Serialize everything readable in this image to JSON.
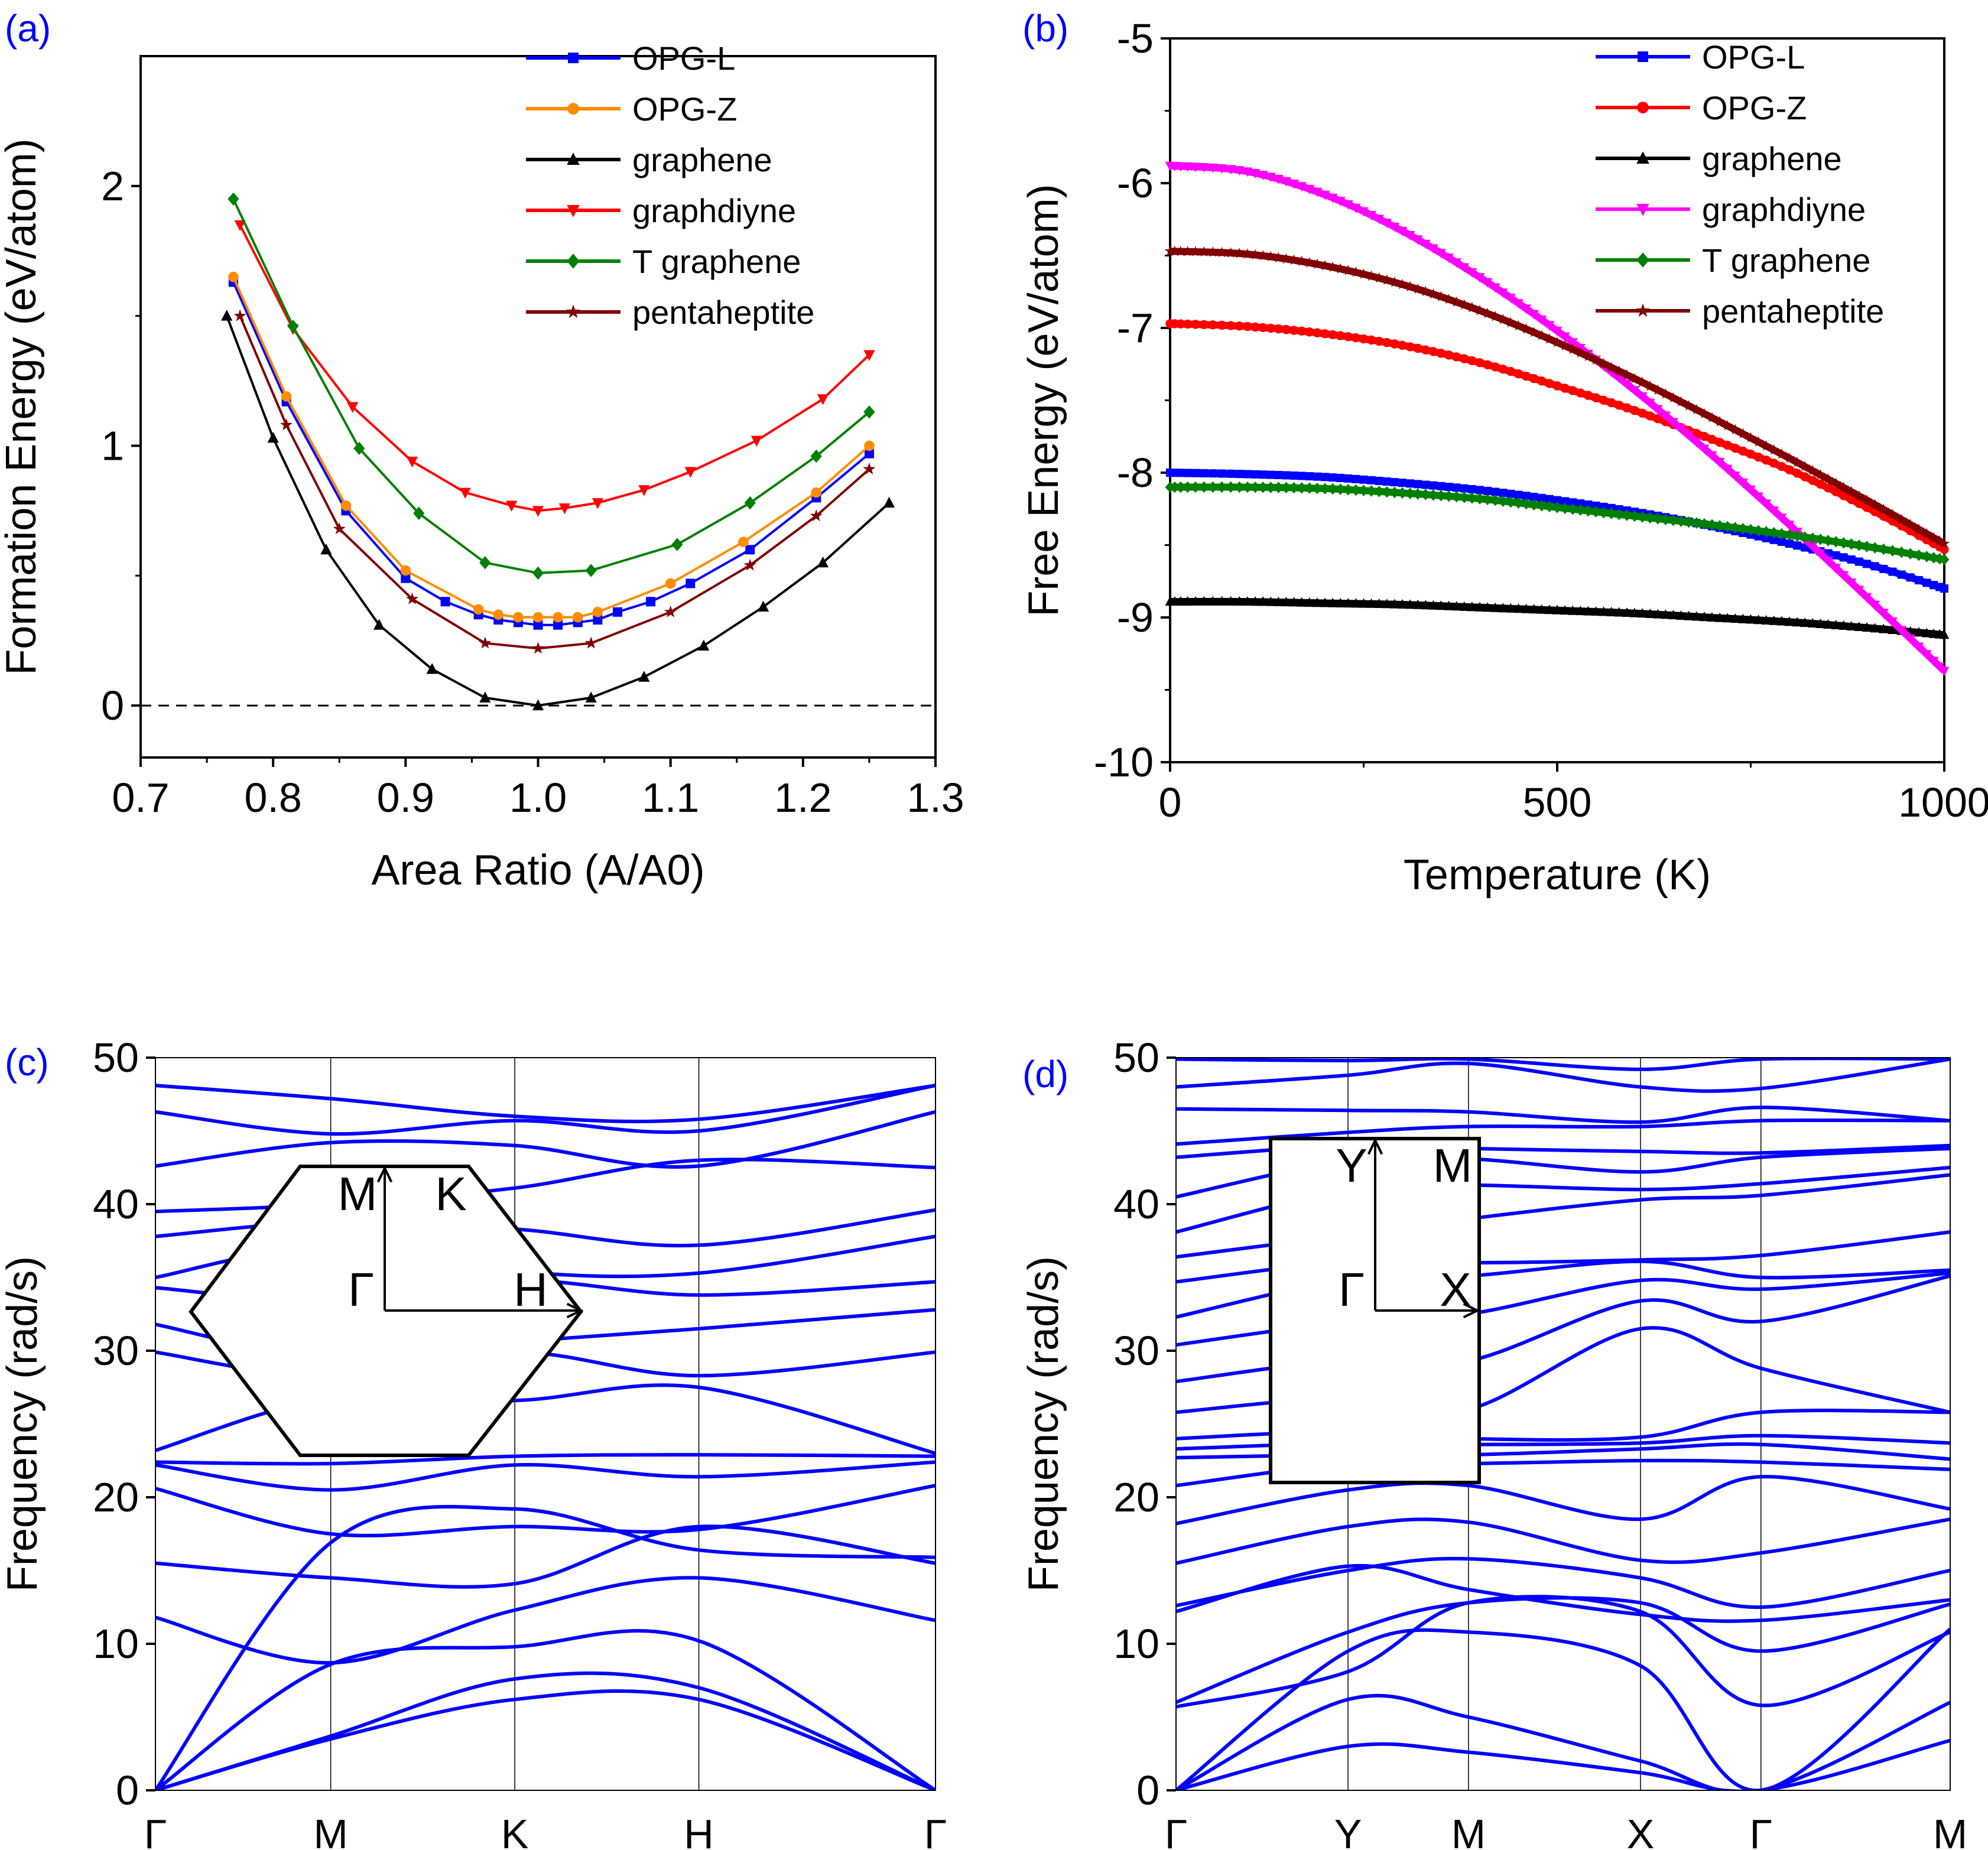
{
  "chart_data": [
    {
      "id": "a",
      "panel_label": "(a)",
      "type": "line",
      "xlabel": "Area Ratio (A/A0)",
      "ylabel": "Formation Energy (eV/atom)",
      "xlim": [
        0.7,
        1.3
      ],
      "ylim": [
        -0.2,
        2.5
      ],
      "xticks": [
        "0.7",
        "0.8",
        "0.9",
        "1.0",
        "1.1",
        "1.2",
        "1.3"
      ],
      "yticks": [
        "0",
        "1",
        "2"
      ],
      "reference_line_y": 0,
      "legend_position": "top-right",
      "series": [
        {
          "name": "OPG-L",
          "color": "#0000ff",
          "marker": "square",
          "x": [
            0.77,
            0.81,
            0.855,
            0.9,
            0.93,
            0.955,
            0.97,
            0.985,
            1.0,
            1.015,
            1.03,
            1.045,
            1.06,
            1.085,
            1.115,
            1.16,
            1.21,
            1.25
          ],
          "y": [
            1.63,
            1.17,
            0.75,
            0.49,
            0.4,
            0.35,
            0.33,
            0.32,
            0.31,
            0.31,
            0.32,
            0.33,
            0.36,
            0.4,
            0.47,
            0.6,
            0.8,
            0.97
          ]
        },
        {
          "name": "OPG-Z",
          "color": "#ff8c00",
          "marker": "circle",
          "x": [
            0.77,
            0.81,
            0.855,
            0.9,
            0.955,
            0.97,
            0.985,
            1.0,
            1.015,
            1.03,
            1.045,
            1.1,
            1.155,
            1.21,
            1.25
          ],
          "y": [
            1.65,
            1.19,
            0.77,
            0.52,
            0.37,
            0.35,
            0.34,
            0.34,
            0.34,
            0.34,
            0.36,
            0.47,
            0.63,
            0.82,
            1.0
          ]
        },
        {
          "name": "graphene",
          "color": "#000000",
          "marker": "triangle-up",
          "x": [
            0.765,
            0.8,
            0.84,
            0.88,
            0.92,
            0.96,
            1.0,
            1.04,
            1.08,
            1.125,
            1.17,
            1.215,
            1.265
          ],
          "y": [
            1.5,
            1.03,
            0.6,
            0.31,
            0.14,
            0.03,
            0.0,
            0.03,
            0.11,
            0.23,
            0.38,
            0.55,
            0.78
          ]
        },
        {
          "name": "graphdiyne",
          "color": "#ff0000",
          "marker": "triangle-down",
          "x": [
            0.775,
            0.815,
            0.86,
            0.905,
            0.945,
            0.98,
            1.0,
            1.02,
            1.045,
            1.08,
            1.115,
            1.165,
            1.215,
            1.25
          ],
          "y": [
            1.85,
            1.45,
            1.15,
            0.94,
            0.82,
            0.77,
            0.75,
            0.76,
            0.78,
            0.83,
            0.9,
            1.02,
            1.18,
            1.35
          ]
        },
        {
          "name": "T graphene",
          "color": "#008000",
          "marker": "diamond",
          "x": [
            0.77,
            0.815,
            0.865,
            0.91,
            0.96,
            1.0,
            1.04,
            1.105,
            1.16,
            1.21,
            1.25
          ],
          "y": [
            1.95,
            1.46,
            0.99,
            0.74,
            0.55,
            0.51,
            0.52,
            0.62,
            0.78,
            0.96,
            1.13
          ]
        },
        {
          "name": "pentaheptite",
          "color": "#800000",
          "marker": "star",
          "x": [
            0.775,
            0.81,
            0.85,
            0.905,
            0.96,
            1.0,
            1.04,
            1.1,
            1.16,
            1.21,
            1.25
          ],
          "y": [
            1.5,
            1.08,
            0.68,
            0.41,
            0.24,
            0.22,
            0.24,
            0.36,
            0.54,
            0.73,
            0.91
          ]
        }
      ]
    },
    {
      "id": "b",
      "panel_label": "(b)",
      "type": "line",
      "xlabel": "Temperature (K)",
      "ylabel": "Free Energy (eV/atom)",
      "xlim": [
        0,
        1000
      ],
      "ylim": [
        -10,
        -5
      ],
      "xticks": [
        "0",
        "500",
        "1000"
      ],
      "yticks": [
        "-5",
        "-6",
        "-7",
        "-8",
        "-9",
        "-10"
      ],
      "legend_position": "top-right",
      "series": [
        {
          "name": "OPG-L",
          "color": "#0000ff",
          "marker": "square",
          "x": [
            0,
            100,
            200,
            300,
            400,
            500,
            600,
            700,
            800,
            900,
            1000
          ],
          "y": [
            -8.0,
            -8.01,
            -8.03,
            -8.07,
            -8.12,
            -8.19,
            -8.27,
            -8.37,
            -8.49,
            -8.63,
            -8.8
          ]
        },
        {
          "name": "OPG-Z",
          "color": "#ff0000",
          "marker": "circle",
          "x": [
            0,
            100,
            200,
            300,
            400,
            500,
            600,
            700,
            800,
            900,
            1000
          ],
          "y": [
            -6.97,
            -6.99,
            -7.04,
            -7.12,
            -7.24,
            -7.4,
            -7.57,
            -7.77,
            -7.98,
            -8.24,
            -8.53
          ]
        },
        {
          "name": "graphene",
          "color": "#000000",
          "marker": "triangle-up",
          "x": [
            0,
            100,
            200,
            300,
            400,
            500,
            600,
            700,
            800,
            900,
            1000
          ],
          "y": [
            -8.89,
            -8.89,
            -8.9,
            -8.91,
            -8.93,
            -8.95,
            -8.97,
            -9.0,
            -9.03,
            -9.07,
            -9.12
          ]
        },
        {
          "name": "graphdiyne",
          "color": "#ff00ff",
          "marker": "triangle-down",
          "x": [
            0,
            100,
            200,
            300,
            400,
            500,
            600,
            700,
            800,
            900,
            1000
          ],
          "y": [
            -5.88,
            -5.92,
            -6.08,
            -6.33,
            -6.65,
            -7.02,
            -7.43,
            -7.88,
            -8.36,
            -8.86,
            -9.37
          ]
        },
        {
          "name": "T graphene",
          "color": "#008000",
          "marker": "diamond",
          "x": [
            0,
            100,
            200,
            300,
            400,
            500,
            600,
            700,
            800,
            900,
            1000
          ],
          "y": [
            -8.1,
            -8.1,
            -8.11,
            -8.14,
            -8.18,
            -8.24,
            -8.3,
            -8.36,
            -8.43,
            -8.51,
            -8.6
          ]
        },
        {
          "name": "pentaheptite",
          "color": "#800000",
          "marker": "star",
          "x": [
            0,
            100,
            200,
            300,
            400,
            500,
            600,
            700,
            800,
            900,
            1000
          ],
          "y": [
            -6.47,
            -6.49,
            -6.57,
            -6.7,
            -6.88,
            -7.1,
            -7.35,
            -7.62,
            -7.9,
            -8.19,
            -8.49
          ]
        }
      ]
    },
    {
      "id": "c",
      "panel_label": "(c)",
      "type": "line",
      "ylabel": "Frequency (rad/s)",
      "ylim": [
        0,
        50
      ],
      "yticks": [
        "0",
        "10",
        "20",
        "30",
        "40",
        "50"
      ],
      "kpoints": [
        "Γ",
        "M",
        "K",
        "H",
        "Γ"
      ],
      "kpositions": [
        0,
        1.0,
        2.05,
        3.1,
        4.45
      ],
      "inset_labels": [
        "M",
        "K",
        "Γ",
        "H"
      ],
      "color": "#0000ff",
      "series": [
        {
          "name": "band-1",
          "y": [
            0,
            3.5,
            6.2,
            6.2,
            0
          ]
        },
        {
          "name": "band-2",
          "y": [
            0,
            3.7,
            7.6,
            7.0,
            0
          ]
        },
        {
          "name": "band-3",
          "y": [
            0,
            8.6,
            9.8,
            10.2,
            0
          ]
        },
        {
          "name": "band-4",
          "y": [
            11.8,
            8.7,
            12.3,
            14.5,
            11.6
          ]
        },
        {
          "name": "band-5",
          "y": [
            15.5,
            14.5,
            14.1,
            18.0,
            15.5
          ]
        },
        {
          "name": "band-6",
          "y": [
            0,
            16.9,
            19.2,
            16.4,
            15.9
          ]
        },
        {
          "name": "band-7",
          "y": [
            20.6,
            17.5,
            18.0,
            17.8,
            20.8
          ]
        },
        {
          "name": "band-8",
          "y": [
            22.2,
            20.5,
            22.2,
            21.4,
            22.4
          ]
        },
        {
          "name": "band-9",
          "y": [
            22.4,
            22.3,
            22.8,
            22.9,
            22.8
          ]
        },
        {
          "name": "band-10",
          "y": [
            23.2,
            26.8,
            26.6,
            27.5,
            23.0
          ]
        },
        {
          "name": "band-11",
          "y": [
            29.9,
            28.2,
            29.9,
            28.3,
            29.9
          ]
        },
        {
          "name": "band-12",
          "y": [
            31.8,
            29.5,
            30.6,
            31.5,
            32.8
          ]
        },
        {
          "name": "band-13",
          "y": [
            34.3,
            33.4,
            34.8,
            33.8,
            34.7
          ]
        },
        {
          "name": "band-14",
          "y": [
            35.0,
            37.2,
            35.4,
            35.3,
            37.8
          ]
        },
        {
          "name": "band-15",
          "y": [
            37.8,
            38.8,
            38.3,
            37.2,
            39.6
          ]
        },
        {
          "name": "band-16",
          "y": [
            39.5,
            40.0,
            41.1,
            43.0,
            42.5
          ]
        },
        {
          "name": "band-17",
          "y": [
            42.6,
            44.2,
            44.0,
            42.6,
            46.3
          ]
        },
        {
          "name": "band-18",
          "y": [
            46.3,
            44.8,
            45.7,
            45.0,
            48.1
          ]
        },
        {
          "name": "band-19",
          "y": [
            48.1,
            47.2,
            46.0,
            45.8,
            48.1
          ]
        }
      ]
    },
    {
      "id": "d",
      "panel_label": "(d)",
      "type": "line",
      "ylabel": "Frequency (rad/s)",
      "ylim": [
        0,
        50
      ],
      "yticks": [
        "0",
        "10",
        "20",
        "30",
        "40",
        "50"
      ],
      "kpoints": [
        "Γ",
        "Y",
        "M",
        "X",
        "Γ",
        "M"
      ],
      "kpositions": [
        0,
        1.0,
        1.7,
        2.7,
        3.4,
        4.5
      ],
      "inset_labels": [
        "Y",
        "M",
        "Γ",
        "X"
      ],
      "color": "#0000ff",
      "series": [
        {
          "name": "band-1",
          "y": [
            0,
            3.0,
            2.6,
            1.2,
            0,
            3.4
          ]
        },
        {
          "name": "band-2",
          "y": [
            0,
            6.2,
            5.0,
            2.0,
            0,
            6.0
          ]
        },
        {
          "name": "band-3",
          "y": [
            0,
            9.5,
            10.8,
            8.5,
            0,
            11.0
          ]
        },
        {
          "name": "band-4",
          "y": [
            5.7,
            8.1,
            12.8,
            12.2,
            5.8,
            10.8
          ]
        },
        {
          "name": "band-5",
          "y": [
            6.0,
            10.8,
            12.8,
            12.8,
            9.5,
            12.7
          ]
        },
        {
          "name": "band-6",
          "y": [
            12.2,
            15.3,
            13.7,
            12.0,
            11.6,
            13.0
          ]
        },
        {
          "name": "band-7",
          "y": [
            12.6,
            15.0,
            15.8,
            14.5,
            12.5,
            15.0
          ]
        },
        {
          "name": "band-8",
          "y": [
            15.5,
            18.0,
            18.3,
            15.7,
            16.2,
            18.5
          ]
        },
        {
          "name": "band-9",
          "y": [
            18.2,
            20.5,
            20.8,
            18.5,
            21.4,
            19.2
          ]
        },
        {
          "name": "band-10",
          "y": [
            20.8,
            22.3,
            22.3,
            22.5,
            22.4,
            21.9
          ]
        },
        {
          "name": "band-11",
          "y": [
            22.7,
            22.9,
            22.9,
            23.3,
            23.6,
            22.6
          ]
        },
        {
          "name": "band-12",
          "y": [
            23.3,
            23.7,
            23.6,
            23.7,
            24.2,
            23.7
          ]
        },
        {
          "name": "band-13",
          "y": [
            24.0,
            24.5,
            24.0,
            24.1,
            25.8,
            25.8
          ]
        },
        {
          "name": "band-14",
          "y": [
            25.8,
            26.8,
            26.0,
            31.5,
            28.8,
            25.8
          ]
        },
        {
          "name": "band-15",
          "y": [
            27.9,
            29.4,
            29.3,
            33.4,
            32.0,
            35.1
          ]
        },
        {
          "name": "band-16",
          "y": [
            30.4,
            32.0,
            32.5,
            34.8,
            34.2,
            35.3
          ]
        },
        {
          "name": "band-17",
          "y": [
            32.3,
            34.9,
            35.1,
            36.1,
            35.0,
            35.5
          ]
        },
        {
          "name": "band-18",
          "y": [
            34.7,
            36.1,
            36.0,
            36.2,
            36.5,
            38.1
          ]
        },
        {
          "name": "band-19",
          "y": [
            36.4,
            37.9,
            39.0,
            40.3,
            40.6,
            42.0
          ]
        },
        {
          "name": "band-20",
          "y": [
            38.1,
            41.0,
            41.3,
            41.0,
            41.4,
            42.5
          ]
        },
        {
          "name": "band-21",
          "y": [
            40.5,
            43.0,
            43.1,
            42.2,
            43.2,
            43.8
          ]
        },
        {
          "name": "band-22",
          "y": [
            43.2,
            44.0,
            43.8,
            43.6,
            43.5,
            44.0
          ]
        },
        {
          "name": "band-23",
          "y": [
            44.1,
            44.9,
            45.3,
            45.3,
            45.7,
            45.7
          ]
        },
        {
          "name": "band-24",
          "y": [
            46.5,
            46.4,
            46.3,
            45.6,
            46.6,
            45.7
          ]
        },
        {
          "name": "band-25",
          "y": [
            48.0,
            48.8,
            49.6,
            48.0,
            47.9,
            49.9
          ]
        },
        {
          "name": "band-26",
          "y": [
            49.9,
            49.8,
            49.9,
            49.2,
            49.9,
            49.9
          ]
        }
      ]
    }
  ]
}
